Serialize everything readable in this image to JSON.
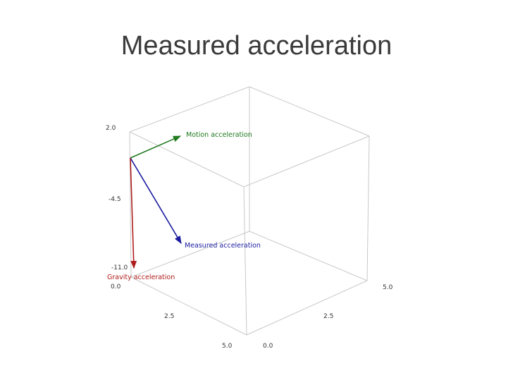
{
  "slide": {
    "title": "Measured acceleration"
  },
  "colors": {
    "box_edge": "#c8c8c8",
    "motion": "#1f7a1f",
    "measured": "#1a1aa0",
    "gravity": "#b01c1c",
    "tick_text": "#333333"
  },
  "axis_ticks": {
    "z_top": "2.0",
    "z_mid": "-4.5",
    "z_bottom": "-11.0",
    "x_start": "0.0",
    "x_mid": "2.5",
    "x_end": "5.0",
    "y_start": "0.0",
    "y_mid": "2.5",
    "y_end": "5.0"
  },
  "vectors": {
    "motion": {
      "label": "Motion acceleration"
    },
    "measured": {
      "label": "Measured acceleration"
    },
    "gravity": {
      "label": "Gravity acceleration"
    }
  }
}
